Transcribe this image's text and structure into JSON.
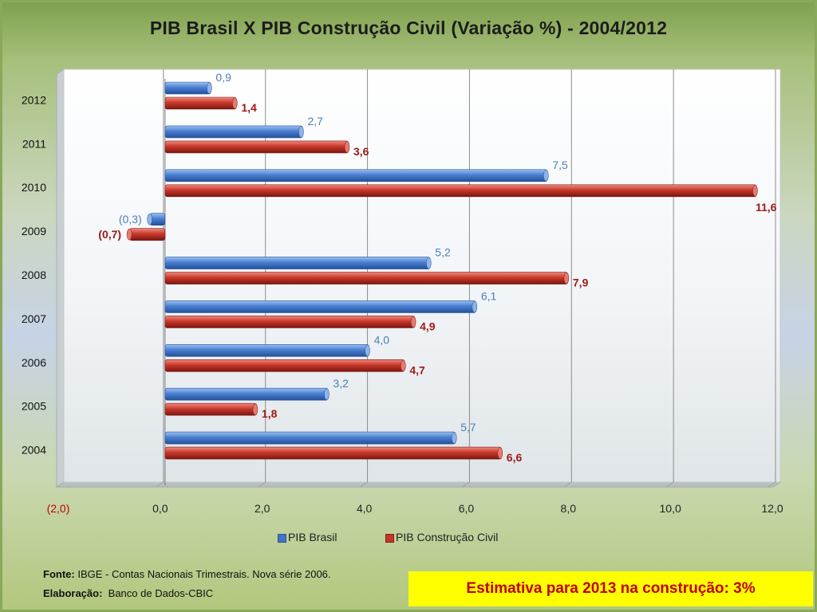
{
  "source": {
    "fonte_label": "Fonte:",
    "fonte_text": "IBGE - Contas Nacionais Trimestrais. Nova série 2006.",
    "elaboracao_label": "Elaboração:",
    "elaboracao_text": "Banco de Dados-CBIC"
  },
  "callout": {
    "text": "Estimativa para 2013 na construção: 3%"
  },
  "colors": {
    "pib_brasil": "#4472c4",
    "pib_construcao": "#c0392b"
  },
  "chart_data": {
    "type": "bar",
    "orientation": "horizontal",
    "title": "PIB Brasil X PIB Construção Civil (Variação %) - 2004/2012",
    "categories": [
      "2004",
      "2005",
      "2006",
      "2007",
      "2008",
      "2009",
      "2010",
      "2011",
      "2012"
    ],
    "series": [
      {
        "name": "PIB Brasil",
        "values": [
          5.7,
          3.2,
          4.0,
          6.1,
          5.2,
          -0.3,
          7.5,
          2.7,
          0.9
        ],
        "labels": [
          "5,7",
          "3,2",
          "4,0",
          "6,1",
          "5,2",
          "(0,3)",
          "7,5",
          "2,7",
          "0,9"
        ]
      },
      {
        "name": "PIB Construção Civil",
        "values": [
          6.6,
          1.8,
          4.7,
          4.9,
          7.9,
          -0.7,
          11.6,
          3.6,
          1.4
        ],
        "labels": [
          "6,6",
          "1,8",
          "4,7",
          "4,9",
          "7,9",
          "(0,7)",
          "11,6",
          "3,6",
          "1,4"
        ]
      }
    ],
    "x_ticks": [
      -2,
      0,
      2,
      4,
      6,
      8,
      10,
      12
    ],
    "x_tick_labels": [
      "(2,0)",
      "0,0",
      "2,0",
      "4,0",
      "6,0",
      "8,0",
      "10,0",
      "12,0"
    ],
    "xlim": [
      -2,
      12
    ],
    "grid": true,
    "legend": "bottom"
  }
}
